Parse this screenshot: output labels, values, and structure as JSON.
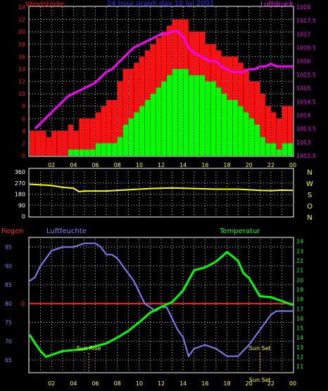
{
  "colors": {
    "background": "#000000",
    "grid": "#ffffff",
    "axis": "#ffffff",
    "wind_red": "#ff1010",
    "wind_green": "#00ff00",
    "pressure": "#ff00ff",
    "direction": "#ffff00",
    "humidity": "#8080ff",
    "temperature": "#00ff00",
    "rain": "#ff2020",
    "x_labels": "#ffff00",
    "title": "#3030ff"
  },
  "chart_data": [
    {
      "type": "bar",
      "title": "24 hour graph day 10 Jul 2001",
      "left_label": "Windstärke",
      "right_label": "Luftdruck",
      "x_tick_labels": [
        "02",
        "04",
        "06",
        "08",
        "10",
        "12",
        "14",
        "16",
        "18",
        "20",
        "22",
        "00"
      ],
      "ylim_left": [
        0,
        24
      ],
      "y_ticks_left": [
        0,
        2,
        4,
        6,
        8,
        10,
        12,
        14,
        16,
        18,
        20,
        22,
        24
      ],
      "ylim_right": [
        1012.5,
        1018
      ],
      "y_ticks_right": [
        "1012.5",
        "1013",
        "1013.5",
        "1014",
        "1014.5",
        "1015",
        "1015.5",
        "1016",
        "1016.5",
        "1017",
        "1017.5",
        "1018"
      ],
      "grid": true,
      "x_hours": [
        0.5,
        1,
        1.5,
        2,
        2.5,
        3,
        3.5,
        4,
        4.5,
        5,
        5.5,
        6,
        6.5,
        7,
        7.5,
        8,
        8.5,
        9,
        9.5,
        10,
        10.5,
        11,
        11.5,
        12,
        12.5,
        13,
        13.5,
        14,
        14.5,
        15,
        15.5,
        16,
        16.5,
        17,
        17.5,
        18,
        18.5,
        19,
        19.5,
        20,
        20.5,
        21,
        21.5,
        22,
        22.5,
        23,
        23.5,
        24
      ],
      "series": [
        {
          "name": "gust",
          "values": [
            4,
            4,
            4,
            3,
            4,
            4,
            4,
            5,
            4,
            6,
            6,
            6,
            7,
            8,
            9,
            9,
            12,
            14,
            14,
            15,
            16,
            17,
            18,
            19,
            20,
            21,
            22,
            22,
            22,
            20,
            20,
            20,
            18,
            18,
            17,
            16,
            16,
            16,
            15,
            14,
            12,
            12,
            10,
            8,
            7,
            6,
            8,
            8
          ]
        },
        {
          "name": "average",
          "values": [
            0,
            0,
            0,
            0,
            0,
            0,
            0,
            1,
            1,
            1,
            1,
            1,
            2,
            2,
            2,
            2,
            3,
            5,
            6,
            7,
            8,
            9,
            10,
            11,
            12,
            13,
            14,
            14,
            14,
            13,
            13,
            13,
            12,
            12,
            11,
            10,
            9,
            9,
            8,
            7,
            6,
            5,
            3,
            2,
            2,
            1,
            2,
            2
          ]
        },
        {
          "name": "Luftdruck",
          "axis": "right",
          "values": [
            1013.5,
            1013.7,
            1013.9,
            1014.1,
            1014.3,
            1014.5,
            1014.7,
            1014.8,
            1014.9,
            1015.0,
            1015.1,
            1015.2,
            1015.4,
            1015.6,
            1015.7,
            1015.9,
            1016.1,
            1016.3,
            1016.5,
            1016.6,
            1016.7,
            1016.8,
            1016.9,
            1017.0,
            1017.0,
            1017.1,
            1017.1,
            1016.9,
            1016.5,
            1016.3,
            1016.2,
            1016.1,
            1016.0,
            1016.0,
            1015.8,
            1015.7,
            1015.6,
            1015.6,
            1015.6,
            1015.7,
            1015.7,
            1015.8,
            1015.8,
            1015.9,
            1015.8,
            1015.8,
            1015.8,
            1015.8
          ]
        }
      ]
    },
    {
      "type": "line",
      "y_tick_labels": [
        "360",
        "270",
        "180",
        "90",
        "0"
      ],
      "ylim": [
        0,
        360
      ],
      "right_labels": [
        "N",
        "W",
        "S",
        "O",
        "N"
      ],
      "x_hours": [
        0,
        2,
        3,
        4,
        4.5,
        5,
        7,
        9,
        11,
        13,
        15,
        17,
        19,
        21,
        22,
        23,
        24
      ],
      "series": [
        {
          "name": "direction",
          "values": [
            260,
            250,
            235,
            228,
            200,
            205,
            205,
            215,
            225,
            230,
            225,
            220,
            220,
            210,
            208,
            212,
            210
          ]
        }
      ]
    },
    {
      "type": "line",
      "left_label": "Regen",
      "humidity_label": "Luftfeuchte",
      "temperature_label": "Temperatur",
      "ylim_left": [
        62,
        97
      ],
      "y_ticks_left": [
        65,
        70,
        75,
        80,
        85,
        90,
        95
      ],
      "ylim_right": [
        10.5,
        24.2
      ],
      "y_ticks_right": [
        11,
        12,
        13,
        14,
        15,
        16,
        17,
        18,
        19,
        20,
        21,
        22,
        23,
        24
      ],
      "rain_marker": "0",
      "rain_line_value": 80,
      "x_tick_labels": [
        "02",
        "04",
        "06",
        "08",
        "10",
        "12",
        "14",
        "16",
        "18",
        "20",
        "22",
        "00"
      ],
      "annotations": [
        "Sun Rise",
        "Sun Set",
        "Sun Set"
      ],
      "annotation_hours": [
        5.4,
        21,
        21
      ],
      "series": [
        {
          "name": "Luftfeuchte",
          "x_hours": [
            0,
            0.5,
            1,
            2,
            3,
            4,
            5,
            6,
            6.5,
            7,
            7.5,
            8,
            8.5,
            9,
            9.5,
            10,
            10.5,
            11,
            11.5,
            12,
            12.5,
            13,
            13.5,
            14,
            14.5,
            15,
            16,
            17,
            18,
            19,
            20,
            20.5,
            21,
            21.5,
            22,
            22.5,
            23,
            23.5,
            24
          ],
          "values": [
            86,
            87,
            90,
            94,
            95,
            95,
            96,
            96,
            95,
            93,
            93,
            92,
            90,
            88,
            86,
            83,
            80,
            79,
            78,
            79,
            79,
            76,
            73,
            71,
            66,
            68,
            69,
            68,
            66,
            66,
            69,
            71,
            73,
            75,
            77,
            78,
            78,
            78,
            78
          ]
        },
        {
          "name": "Temperatur",
          "x_hours": [
            0,
            0.5,
            1,
            1.5,
            2,
            3,
            4,
            5,
            6,
            7,
            8,
            9,
            10,
            11,
            12,
            13,
            14,
            15,
            16,
            17,
            18,
            19,
            19.5,
            20,
            21,
            22,
            23,
            24
          ],
          "values": [
            14.3,
            13.4,
            12.6,
            12,
            12.2,
            12.6,
            12.7,
            12.8,
            13.1,
            13.4,
            14,
            14.7,
            15.6,
            16.6,
            17.2,
            17.7,
            18.9,
            21,
            21.3,
            21.9,
            22.9,
            22,
            20.7,
            20.2,
            18.3,
            18.2,
            17.8,
            17.4
          ]
        }
      ]
    }
  ]
}
